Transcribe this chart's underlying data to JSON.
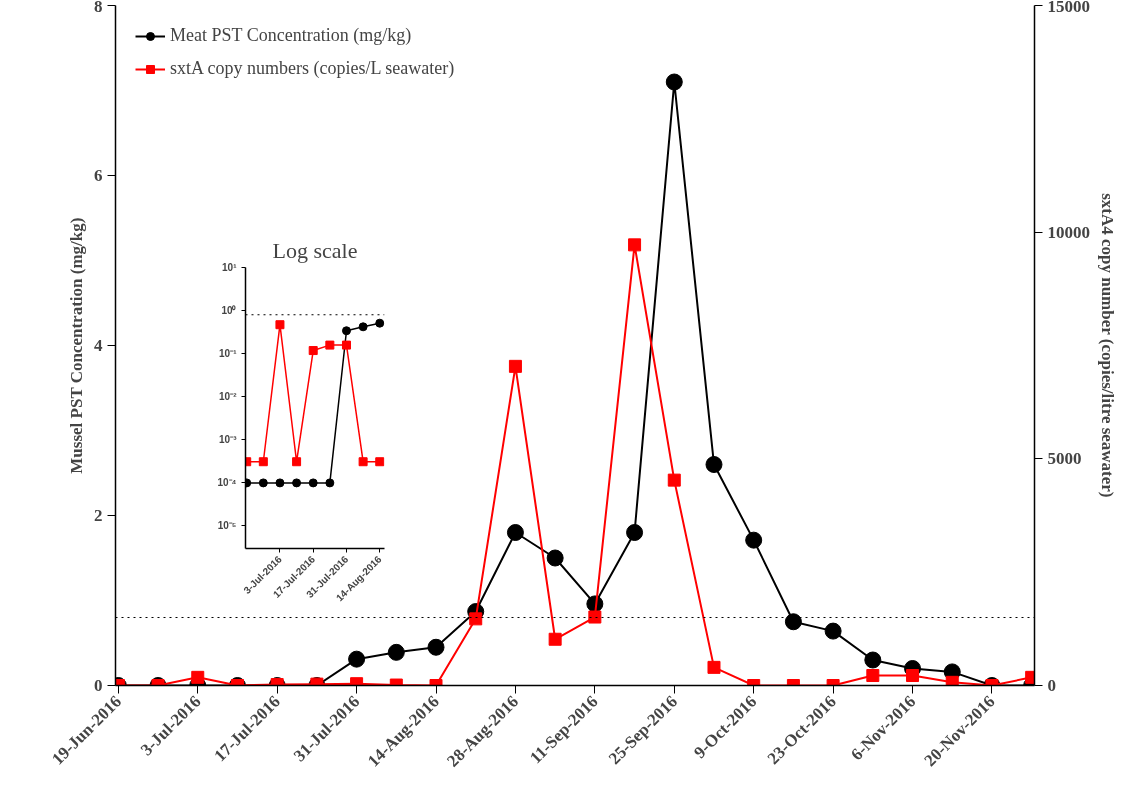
{
  "chart_data": [
    {
      "type": "line",
      "ylabel": "Mussel PST Concentration (mg/kg)",
      "y2label": "sxtA4 copy number (copies/litre seawater)",
      "x": [
        "2016-06-19",
        "2016-06-26",
        "2016-07-03",
        "2016-07-10",
        "2016-07-17",
        "2016-07-24",
        "2016-07-31",
        "2016-08-07",
        "2016-08-14",
        "2016-08-21",
        "2016-08-28",
        "2016-09-04",
        "2016-09-11",
        "2016-09-18",
        "2016-09-25",
        "2016-10-02",
        "2016-10-09",
        "2016-10-16",
        "2016-10-23",
        "2016-10-30",
        "2016-11-06",
        "2016-11-13",
        "2016-11-20",
        "2016-11-27"
      ],
      "xlim": [
        "2016-06-18T12:00",
        "2016-11-27T12:00"
      ],
      "xticks": [
        {
          "value": "2016-06-19",
          "label": "19-Jun-2016"
        },
        {
          "value": "2016-07-03",
          "label": "3-Jul-2016"
        },
        {
          "value": "2016-07-17",
          "label": "17-Jul-2016"
        },
        {
          "value": "2016-07-31",
          "label": "31-Jul-2016"
        },
        {
          "value": "2016-08-14",
          "label": "14-Aug-2016"
        },
        {
          "value": "2016-08-28",
          "label": "28-Aug-2016"
        },
        {
          "value": "2016-09-11",
          "label": "11-Sep-2016"
        },
        {
          "value": "2016-09-25",
          "label": "25-Sep-2016"
        },
        {
          "value": "2016-10-09",
          "label": "9-Oct-2016"
        },
        {
          "value": "2016-10-23",
          "label": "23-Oct-2016"
        },
        {
          "value": "2016-11-06",
          "label": "6-Nov-2016"
        },
        {
          "value": "2016-11-20",
          "label": "20-Nov-2016"
        }
      ],
      "ylim": [
        0,
        8
      ],
      "yticks": [
        0,
        2,
        4,
        6,
        8
      ],
      "y2lim": [
        0,
        15000
      ],
      "y2ticks": [
        0,
        5000,
        10000,
        15000
      ],
      "series": [
        {
          "name": "Meat PST Concentration (mg/kg)",
          "color": "#000000",
          "marker": "circle",
          "values": [
            0,
            0,
            0,
            0,
            0,
            0,
            0.31,
            0.39,
            0.45,
            0.87,
            1.8,
            1.5,
            0.96,
            1.8,
            7.1,
            2.6,
            1.71,
            0.75,
            0.64,
            0.3,
            0.2,
            0.16,
            0,
            0
          ]
        },
        {
          "name": "sxtA copy numbers (copies/L seawater)",
          "color": "#ff0000",
          "marker": "square",
          "axis": "y2",
          "values": [
            0,
            0,
            180,
            0,
            20,
            30,
            40,
            10,
            0,
            1470,
            7040,
            1020,
            1510,
            9720,
            4530,
            400,
            0,
            0,
            0,
            220,
            220,
            70,
            0,
            180
          ]
        }
      ],
      "ref_lines": [
        {
          "axis": "y",
          "value": 0.8,
          "color": "#000000",
          "line_style": "dotted"
        }
      ],
      "legend": "top left",
      "line_style": "solid",
      "grid": false
    },
    {
      "type": "line",
      "title": "Log scale",
      "log": "y",
      "x": [
        "2016-06-19",
        "2016-06-26",
        "2016-07-03",
        "2016-07-10",
        "2016-07-17",
        "2016-07-24",
        "2016-07-31",
        "2016-08-07",
        "2016-08-14"
      ],
      "xlim": [
        "2016-06-18T12:00",
        "2016-08-16"
      ],
      "xticks": [
        {
          "value": "2016-07-03",
          "label": "3-Jul-2016"
        },
        {
          "value": "2016-07-17",
          "label": "17-Jul-2016"
        },
        {
          "value": "2016-07-31",
          "label": "31-Jul-2016"
        },
        {
          "value": "2016-08-14",
          "label": "14-Aug-2016"
        }
      ],
      "ylim": [
        3e-06,
        10
      ],
      "yticks": [
        {
          "value": 1e-05,
          "label": "10⁻⁵"
        },
        {
          "value": 0.0001,
          "label": "10⁻⁴"
        },
        {
          "value": 0.001,
          "label": "10⁻³"
        },
        {
          "value": 0.01,
          "label": "10⁻²"
        },
        {
          "value": 0.1,
          "label": "10⁻¹"
        },
        {
          "value": 1,
          "label": "10⁰"
        },
        {
          "value": 10,
          "label": "10¹"
        }
      ],
      "series": [
        {
          "color": "#000000",
          "marker": "circle",
          "values": [
            0.0001,
            0.0001,
            0.0001,
            0.0001,
            0.0001,
            0.0001,
            0.34,
            0.42,
            0.51
          ]
        },
        {
          "color": "#ff0000",
          "marker": "square",
          "values": [
            0.00031,
            0.00031,
            0.47,
            0.00031,
            0.118,
            0.158,
            0.158,
            0.00031,
            0.00031
          ]
        }
      ],
      "ref_lines": [
        {
          "axis": "y",
          "value": 0.8,
          "color": "#000000",
          "line_style": "dotted"
        }
      ],
      "line_style": "solid",
      "grid": false,
      "legend": false
    }
  ]
}
